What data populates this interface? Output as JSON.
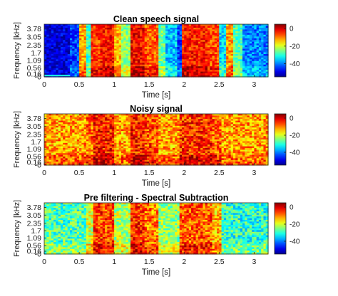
{
  "colors": {
    "jet_stops": [
      "#00008f",
      "#0000ff",
      "#00ffff",
      "#ffff00",
      "#ff0000",
      "#800000"
    ],
    "axis_color": "#222222",
    "background": "#ffffff"
  },
  "chart_data": [
    {
      "type": "heatmap",
      "colormap": "jet",
      "title": "Clean speech signal",
      "xlabel": "Time [s]",
      "ylabel": "Frequency [kHz]",
      "x_ticks": [
        "0",
        "0.5",
        "1",
        "1.5",
        "2",
        "2.5",
        "3"
      ],
      "y_ticks": [
        "-0",
        "0.16",
        "0.56",
        "1.09",
        "1.7",
        "2.35",
        "3.05",
        "3.78"
      ],
      "xlim": [
        0,
        3.2
      ],
      "colorbar_ticks": [
        "0",
        "-20",
        "-40"
      ],
      "clim": [
        -55,
        5
      ],
      "grid": false,
      "regions": [
        {
          "t0": 0.0,
          "t1": 0.37,
          "level": -50
        },
        {
          "t0": 0.37,
          "t1": 0.5,
          "level": -44
        },
        {
          "t0": 0.5,
          "t1": 0.6,
          "level": -12
        },
        {
          "t0": 0.6,
          "t1": 0.67,
          "level": -30
        },
        {
          "t0": 0.67,
          "t1": 0.8,
          "level": -6
        },
        {
          "t0": 0.8,
          "t1": 1.0,
          "level": -3
        },
        {
          "t0": 1.0,
          "t1": 1.1,
          "level": -14
        },
        {
          "t0": 1.1,
          "t1": 1.25,
          "level": -24
        },
        {
          "t0": 1.25,
          "t1": 1.45,
          "level": -2
        },
        {
          "t0": 1.45,
          "t1": 1.62,
          "level": -8
        },
        {
          "t0": 1.62,
          "t1": 1.75,
          "level": -26
        },
        {
          "t0": 1.75,
          "t1": 1.9,
          "level": -36
        },
        {
          "t0": 1.9,
          "t1": 1.98,
          "level": -44
        },
        {
          "t0": 1.98,
          "t1": 2.35,
          "level": -4
        },
        {
          "t0": 2.35,
          "t1": 2.5,
          "level": -7
        },
        {
          "t0": 2.5,
          "t1": 2.6,
          "level": -34
        },
        {
          "t0": 2.6,
          "t1": 2.7,
          "level": -12
        },
        {
          "t0": 2.7,
          "t1": 2.85,
          "level": -28
        },
        {
          "t0": 2.85,
          "t1": 3.2,
          "level": -40
        }
      ]
    },
    {
      "type": "heatmap",
      "colormap": "jet",
      "title": "Noisy signal",
      "xlabel": "Time [s]",
      "ylabel": "Frequency [kHz]",
      "x_ticks": [
        "0",
        "0.5",
        "1",
        "1.5",
        "2",
        "2.5",
        "3"
      ],
      "y_ticks": [
        "-0",
        "0.16",
        "0.56",
        "1.09",
        "1.7",
        "2.35",
        "3.05",
        "3.78"
      ],
      "xlim": [
        0,
        3.2
      ],
      "colorbar_ticks": [
        "0",
        "-20",
        "-40"
      ],
      "clim": [
        -55,
        5
      ],
      "grid": false,
      "regions": [
        {
          "t0": 0.0,
          "t1": 0.6,
          "level": -12
        },
        {
          "t0": 0.6,
          "t1": 0.7,
          "level": -9
        },
        {
          "t0": 0.7,
          "t1": 1.0,
          "level": -4
        },
        {
          "t0": 1.0,
          "t1": 1.25,
          "level": -12
        },
        {
          "t0": 1.25,
          "t1": 1.45,
          "level": -4
        },
        {
          "t0": 1.45,
          "t1": 1.62,
          "level": -7
        },
        {
          "t0": 1.62,
          "t1": 1.95,
          "level": -12
        },
        {
          "t0": 1.95,
          "t1": 2.4,
          "level": -5
        },
        {
          "t0": 2.4,
          "t1": 2.55,
          "level": -8
        },
        {
          "t0": 2.55,
          "t1": 3.2,
          "level": -12
        }
      ]
    },
    {
      "type": "heatmap",
      "colormap": "jet",
      "title": "Pre filtering - Spectral Subtraction",
      "xlabel": "Time [s]",
      "ylabel": "Frequency [kHz]",
      "x_ticks": [
        "0",
        "0.5",
        "1",
        "1.5",
        "2",
        "2.5",
        "3"
      ],
      "y_ticks": [
        "-0",
        "0.16",
        "0.56",
        "1.09",
        "1.7",
        "2.35",
        "3.05",
        "3.78"
      ],
      "xlim": [
        0,
        3.2
      ],
      "colorbar_ticks": [
        "0",
        "-20",
        "-40"
      ],
      "clim": [
        -55,
        5
      ],
      "grid": false,
      "regions": [
        {
          "t0": 0.0,
          "t1": 0.6,
          "level": -28
        },
        {
          "t0": 0.6,
          "t1": 0.7,
          "level": -20
        },
        {
          "t0": 0.7,
          "t1": 1.0,
          "level": -6
        },
        {
          "t0": 1.0,
          "t1": 1.25,
          "level": -22
        },
        {
          "t0": 1.25,
          "t1": 1.45,
          "level": -5
        },
        {
          "t0": 1.45,
          "t1": 1.62,
          "level": -10
        },
        {
          "t0": 1.62,
          "t1": 1.95,
          "level": -24
        },
        {
          "t0": 1.95,
          "t1": 2.4,
          "level": -8
        },
        {
          "t0": 2.4,
          "t1": 2.55,
          "level": -14
        },
        {
          "t0": 2.55,
          "t1": 3.2,
          "level": -30
        }
      ]
    }
  ]
}
